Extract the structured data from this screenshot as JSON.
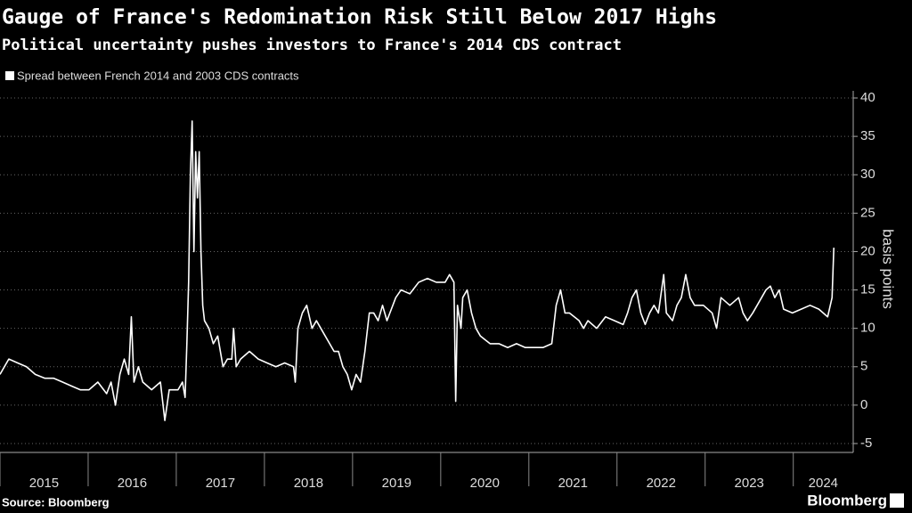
{
  "chart_data": {
    "type": "line",
    "title": "Gauge of France's Redomination Risk Still Below 2017 Highs",
    "subtitle": "Political uncertainty pushes investors to France's 2014 CDS contract",
    "y_label": "basis points",
    "source": "Source: Bloomberg",
    "brand": "Bloomberg",
    "x": [
      2015.0,
      2015.1,
      2015.2,
      2015.3,
      2015.4,
      2015.51,
      2015.61,
      2015.71,
      2015.81,
      2015.91,
      2016.01,
      2016.11,
      2016.21,
      2016.26,
      2016.31,
      2016.36,
      2016.41,
      2016.46,
      2016.49,
      2016.52,
      2016.57,
      2016.62,
      2016.72,
      2016.82,
      2016.87,
      2016.92,
      2017.02,
      2017.07,
      2017.1,
      2017.12,
      2017.14,
      2017.16,
      2017.18,
      2017.2,
      2017.22,
      2017.24,
      2017.26,
      2017.28,
      2017.3,
      2017.32,
      2017.37,
      2017.42,
      2017.47,
      2017.53,
      2017.58,
      2017.63,
      2017.65,
      2017.68,
      2017.73,
      2017.83,
      2017.93,
      2018.03,
      2018.13,
      2018.23,
      2018.33,
      2018.35,
      2018.38,
      2018.43,
      2018.48,
      2018.54,
      2018.59,
      2018.64,
      2018.69,
      2018.74,
      2018.79,
      2018.84,
      2018.89,
      2018.94,
      2018.99,
      2019.04,
      2019.09,
      2019.14,
      2019.19,
      2019.24,
      2019.29,
      2019.34,
      2019.39,
      2019.44,
      2019.49,
      2019.55,
      2019.65,
      2019.75,
      2019.85,
      2019.95,
      2020.05,
      2020.1,
      2020.15,
      2020.17,
      2020.19,
      2020.23,
      2020.25,
      2020.3,
      2020.35,
      2020.4,
      2020.45,
      2020.56,
      2020.66,
      2020.76,
      2020.86,
      2020.96,
      2021.06,
      2021.16,
      2021.26,
      2021.31,
      2021.36,
      2021.41,
      2021.46,
      2021.57,
      2021.62,
      2021.67,
      2021.77,
      2021.87,
      2021.97,
      2022.07,
      2022.12,
      2022.17,
      2022.22,
      2022.27,
      2022.32,
      2022.37,
      2022.42,
      2022.47,
      2022.53,
      2022.56,
      2022.63,
      2022.68,
      2022.73,
      2022.78,
      2022.83,
      2022.88,
      2022.98,
      2023.08,
      2023.13,
      2023.18,
      2023.28,
      2023.38,
      2023.43,
      2023.48,
      2023.54,
      2023.59,
      2023.69,
      2023.74,
      2023.79,
      2023.84,
      2023.89,
      2023.99,
      2024.09,
      2024.19,
      2024.29,
      2024.39,
      2024.44,
      2024.46
    ],
    "series": [
      {
        "name": "Spread between French 2014 and 2003 CDS contracts",
        "color": "#ffffff",
        "values": [
          4,
          6,
          5.5,
          5,
          4,
          3.5,
          3.5,
          3,
          2.5,
          2,
          2,
          3,
          1.5,
          3,
          0,
          4,
          6,
          4,
          11.5,
          3,
          5,
          3,
          2,
          3,
          -2,
          2,
          2,
          3,
          1,
          8,
          16,
          30,
          37,
          20,
          33,
          27,
          33,
          20,
          13,
          11,
          10,
          8,
          9,
          5,
          6,
          6,
          10,
          5,
          6,
          7,
          6,
          5.5,
          5,
          5.5,
          5,
          3,
          10,
          12,
          13,
          10,
          11,
          10,
          9,
          8,
          7,
          7,
          5,
          4,
          2,
          4,
          3,
          7,
          12,
          12,
          11,
          13,
          11,
          12.5,
          14,
          15,
          14.5,
          16,
          16.5,
          16,
          16,
          17,
          16,
          0.5,
          13,
          10,
          14,
          15,
          12,
          10,
          9,
          8,
          8,
          7.5,
          8,
          7.5,
          7.5,
          7.5,
          8,
          13,
          15,
          12,
          12,
          11,
          10,
          11,
          10,
          11.5,
          11,
          10.5,
          12,
          14,
          15,
          12,
          10.5,
          12,
          13,
          12,
          17,
          12,
          11,
          13,
          14,
          17,
          14,
          13,
          13,
          12,
          10,
          14,
          13,
          14,
          12,
          11,
          12,
          13,
          15,
          15.5,
          14,
          15,
          12.5,
          12,
          12.5,
          13,
          12.5,
          11.5,
          14,
          20.5
        ]
      }
    ],
    "xlim": [
      2015,
      2024.68
    ],
    "xticks": [
      2015,
      2016,
      2017,
      2018,
      2019,
      2020,
      2021,
      2022,
      2023,
      2024
    ],
    "ylim": [
      -5,
      40
    ],
    "yticks": [
      -5,
      0,
      5,
      10,
      15,
      20,
      25,
      30,
      35,
      40
    ],
    "grid": true
  }
}
